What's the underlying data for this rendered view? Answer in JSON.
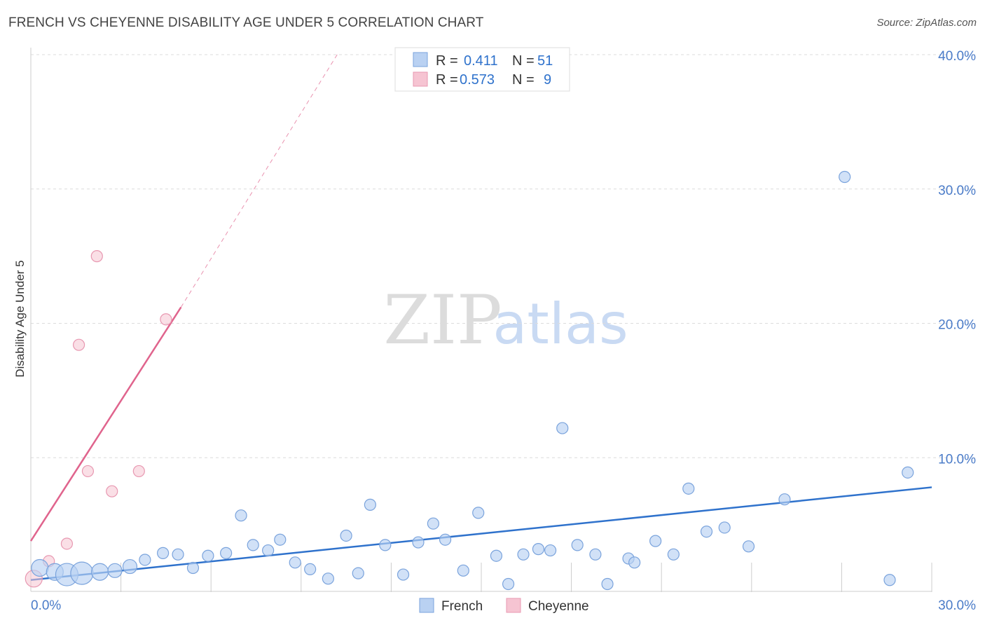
{
  "header": {
    "title": "FRENCH VS CHEYENNE DISABILITY AGE UNDER 5 CORRELATION CHART",
    "source": "Source: ZipAtlas.com"
  },
  "watermark": {
    "zip": "ZIP",
    "atlas": "atlas"
  },
  "colors": {
    "french_fill": "#b9d1f2",
    "french_stroke": "#7aa3dc",
    "french_line": "#2f72cc",
    "cheyenne_fill": "#f6c4d2",
    "cheyenne_stroke": "#e898b1",
    "cheyenne_line": "#e0648d",
    "tick_text": "#4a7bc8",
    "grid": "#dcdcdc"
  },
  "legend": {
    "rows": [
      {
        "series": "French",
        "r_label": "R =",
        "r_value": "0.411",
        "n_label": "N =",
        "n_value": "51"
      },
      {
        "series": "Cheyenne",
        "r_label": "R =",
        "r_value": "0.573",
        "n_label": "N =",
        "n_value": "9"
      }
    ]
  },
  "bottom_legend": {
    "items": [
      "French",
      "Cheyenne"
    ]
  },
  "chart_data": {
    "type": "scatter",
    "title": "FRENCH VS CHEYENNE DISABILITY AGE UNDER 5 CORRELATION CHART",
    "xlabel": "",
    "ylabel": "Disability Age Under 5",
    "xlim": [
      0,
      30
    ],
    "ylim": [
      0,
      40
    ],
    "x_tick_labels": [
      "0.0%",
      "30.0%"
    ],
    "y_ticks": [
      10,
      20,
      30,
      40
    ],
    "y_tick_labels": [
      "10.0%",
      "20.0%",
      "30.0%",
      "40.0%"
    ],
    "grid": true,
    "series": [
      {
        "name": "French",
        "r": 0.411,
        "n": 51,
        "points": [
          {
            "x": 0.3,
            "y": 1.8,
            "s": "l"
          },
          {
            "x": 0.8,
            "y": 1.5,
            "s": "l"
          },
          {
            "x": 1.2,
            "y": 1.3,
            "s": "xl"
          },
          {
            "x": 1.7,
            "y": 1.4,
            "s": "xl"
          },
          {
            "x": 2.3,
            "y": 1.5,
            "s": "l"
          },
          {
            "x": 2.8,
            "y": 1.6,
            "s": "m"
          },
          {
            "x": 3.3,
            "y": 1.9,
            "s": "m"
          },
          {
            "x": 3.8,
            "y": 2.4,
            "s": "s"
          },
          {
            "x": 4.4,
            "y": 2.9,
            "s": "s"
          },
          {
            "x": 4.9,
            "y": 2.8,
            "s": "s"
          },
          {
            "x": 5.4,
            "y": 1.8,
            "s": "s"
          },
          {
            "x": 5.9,
            "y": 2.7,
            "s": "s"
          },
          {
            "x": 6.5,
            "y": 2.9,
            "s": "s"
          },
          {
            "x": 7.0,
            "y": 5.7,
            "s": "s"
          },
          {
            "x": 7.4,
            "y": 3.5,
            "s": "s"
          },
          {
            "x": 7.9,
            "y": 3.1,
            "s": "s"
          },
          {
            "x": 8.3,
            "y": 3.9,
            "s": "s"
          },
          {
            "x": 8.8,
            "y": 2.2,
            "s": "s"
          },
          {
            "x": 9.3,
            "y": 1.7,
            "s": "s"
          },
          {
            "x": 9.9,
            "y": 1.0,
            "s": "s"
          },
          {
            "x": 10.5,
            "y": 4.2,
            "s": "s"
          },
          {
            "x": 10.9,
            "y": 1.4,
            "s": "s"
          },
          {
            "x": 11.3,
            "y": 6.5,
            "s": "s"
          },
          {
            "x": 11.8,
            "y": 3.5,
            "s": "s"
          },
          {
            "x": 12.4,
            "y": 1.3,
            "s": "s"
          },
          {
            "x": 12.9,
            "y": 3.7,
            "s": "s"
          },
          {
            "x": 13.4,
            "y": 5.1,
            "s": "s"
          },
          {
            "x": 13.8,
            "y": 3.9,
            "s": "s"
          },
          {
            "x": 14.4,
            "y": 1.6,
            "s": "s"
          },
          {
            "x": 14.9,
            "y": 5.9,
            "s": "s"
          },
          {
            "x": 15.5,
            "y": 2.7,
            "s": "s"
          },
          {
            "x": 15.9,
            "y": 0.6,
            "s": "s"
          },
          {
            "x": 16.4,
            "y": 2.8,
            "s": "s"
          },
          {
            "x": 16.9,
            "y": 3.2,
            "s": "s"
          },
          {
            "x": 17.3,
            "y": 3.1,
            "s": "s"
          },
          {
            "x": 17.7,
            "y": 12.2,
            "s": "s"
          },
          {
            "x": 18.2,
            "y": 3.5,
            "s": "s"
          },
          {
            "x": 18.8,
            "y": 2.8,
            "s": "s"
          },
          {
            "x": 19.2,
            "y": 0.6,
            "s": "s"
          },
          {
            "x": 19.9,
            "y": 2.5,
            "s": "s"
          },
          {
            "x": 20.1,
            "y": 2.2,
            "s": "s"
          },
          {
            "x": 20.8,
            "y": 3.8,
            "s": "s"
          },
          {
            "x": 21.4,
            "y": 2.8,
            "s": "s"
          },
          {
            "x": 21.9,
            "y": 7.7,
            "s": "s"
          },
          {
            "x": 22.5,
            "y": 4.5,
            "s": "s"
          },
          {
            "x": 23.1,
            "y": 4.8,
            "s": "s"
          },
          {
            "x": 23.9,
            "y": 3.4,
            "s": "s"
          },
          {
            "x": 25.1,
            "y": 6.9,
            "s": "s"
          },
          {
            "x": 27.1,
            "y": 30.9,
            "s": "s"
          },
          {
            "x": 28.6,
            "y": 0.9,
            "s": "s"
          },
          {
            "x": 29.2,
            "y": 8.9,
            "s": "s"
          }
        ],
        "trend": {
          "x0": 0.0,
          "y0": 0.9,
          "x1": 30.0,
          "y1": 7.8
        }
      },
      {
        "name": "Cheyenne",
        "r": 0.573,
        "n": 9,
        "points": [
          {
            "x": 0.1,
            "y": 1.0,
            "s": "l"
          },
          {
            "x": 0.6,
            "y": 2.3,
            "s": "s"
          },
          {
            "x": 1.2,
            "y": 3.6,
            "s": "s"
          },
          {
            "x": 1.6,
            "y": 18.4,
            "s": "s"
          },
          {
            "x": 1.9,
            "y": 9.0,
            "s": "s"
          },
          {
            "x": 2.2,
            "y": 25.0,
            "s": "s"
          },
          {
            "x": 2.7,
            "y": 7.5,
            "s": "s"
          },
          {
            "x": 3.6,
            "y": 9.0,
            "s": "s"
          },
          {
            "x": 4.5,
            "y": 20.3,
            "s": "s"
          }
        ],
        "trend": {
          "x0": 0.0,
          "y0": 3.8,
          "x1": 5.0,
          "y1": 21.2
        },
        "trend_dashed": {
          "x0": 5.0,
          "y0": 21.2,
          "x1": 10.2,
          "y1": 40.0
        }
      }
    ]
  }
}
